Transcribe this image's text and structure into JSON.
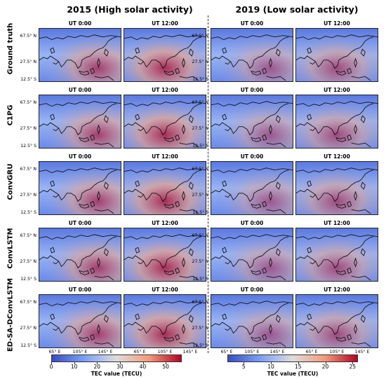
{
  "groups": [
    {
      "title": "2015 (High solar activity)"
    },
    {
      "title": "2019 (Low solar activity)"
    }
  ],
  "rows": [
    {
      "label": "Ground truth"
    },
    {
      "label": "C1PG"
    },
    {
      "label": "ConvGRU"
    },
    {
      "label": "ConvLSTM"
    },
    {
      "label": "ED-SA-DConvLSTM"
    }
  ],
  "panel_titles": [
    "UT 0:00",
    "UT 12:00"
  ],
  "lat_ticks": [
    "67.5° N",
    "27.5° N",
    "12.5° S"
  ],
  "lon_ticks": [
    "65° E",
    "105° E",
    "145° E"
  ],
  "colorbars": [
    {
      "label": "TEC value (TECU)",
      "ticks": [
        "0",
        "10",
        "20",
        "30",
        "40",
        "50"
      ],
      "min": 0,
      "max": 57
    },
    {
      "label": "TEC value (TECU)",
      "ticks": [
        "5",
        "10",
        "15",
        "20",
        "25"
      ],
      "min": 2,
      "max": 26
    }
  ],
  "colors": {
    "low": "#3b4cc0",
    "mid": "#dddddd",
    "high": "#b40426"
  }
}
